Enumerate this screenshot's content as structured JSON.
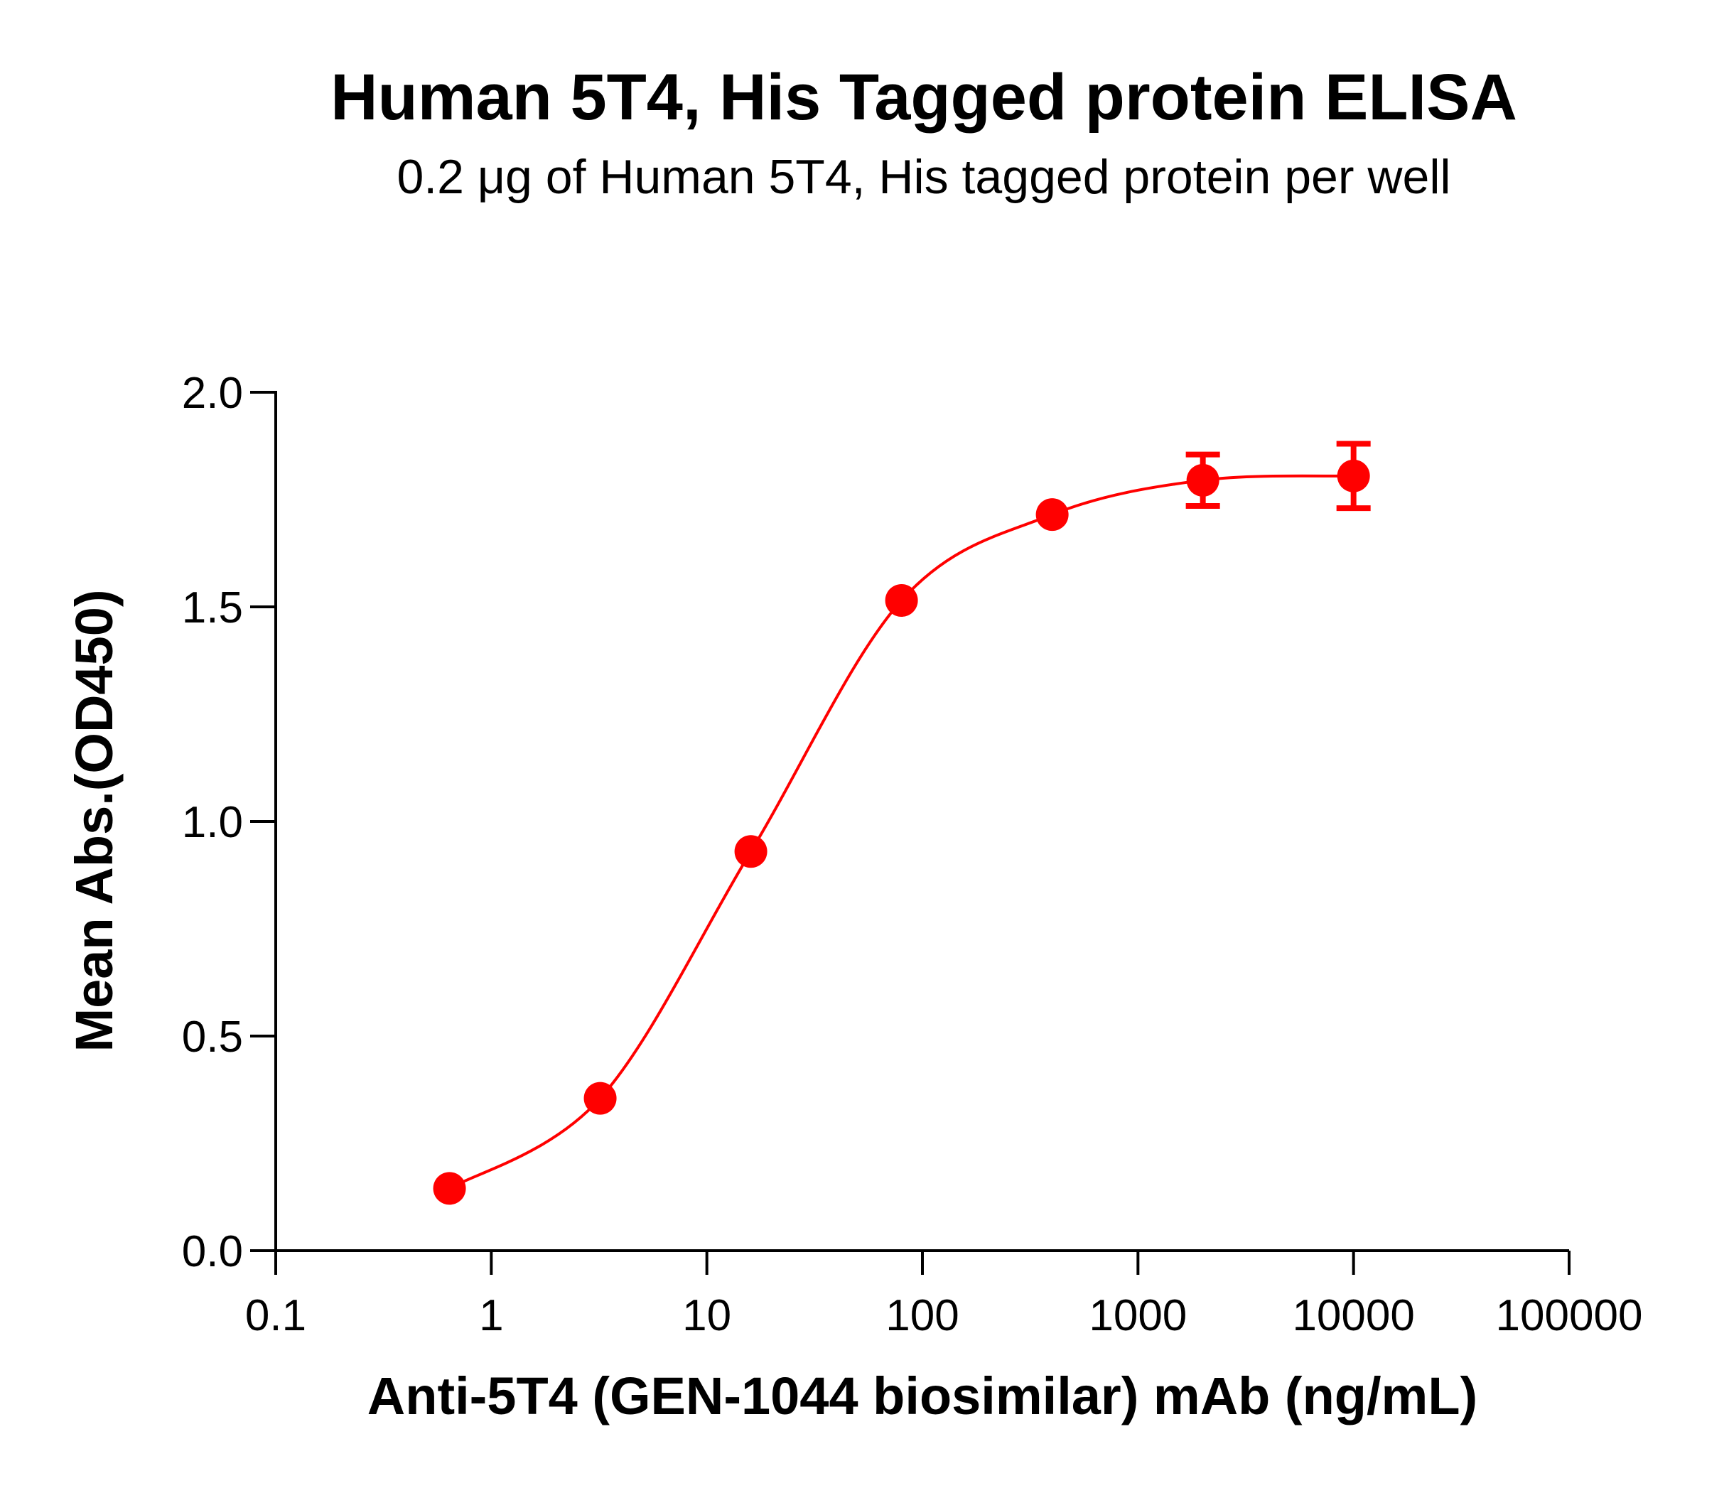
{
  "chart_data": {
    "type": "scatter",
    "title": "Human 5T4, His Tagged protein ELISA",
    "subtitle": "0.2 μg of Human 5T4, His tagged protein per well",
    "xlabel": "Anti-5T4 (GEN-1044 biosimilar) mAb (ng/mL)",
    "ylabel": "Mean Abs.(OD450)",
    "x_scale": "log",
    "xlim": [
      0.1,
      100000
    ],
    "ylim": [
      0,
      2.0
    ],
    "x_ticks": [
      0.1,
      1,
      10,
      100,
      1000,
      10000,
      100000
    ],
    "x_tick_labels": [
      "0.1",
      "1",
      "10",
      "100",
      "1000",
      "10000",
      "100000"
    ],
    "y_ticks": [
      0,
      0.5,
      1.0,
      1.5,
      2.0
    ],
    "y_tick_labels": [
      "0.0",
      "0.5",
      "1.0",
      "1.5",
      "2.0"
    ],
    "grid": false,
    "series": [
      {
        "color": "#ff0000",
        "x": [
          0.64,
          3.2,
          16,
          80,
          400,
          2000,
          10000
        ],
        "y": [
          0.145,
          0.355,
          0.93,
          1.515,
          1.715,
          1.795,
          1.805
        ],
        "error": [
          0.0,
          0.0,
          0.0,
          0.0,
          0.0,
          0.06,
          0.075
        ],
        "fit": "4PL",
        "fit_range": [
          0.64,
          10000
        ]
      }
    ]
  }
}
